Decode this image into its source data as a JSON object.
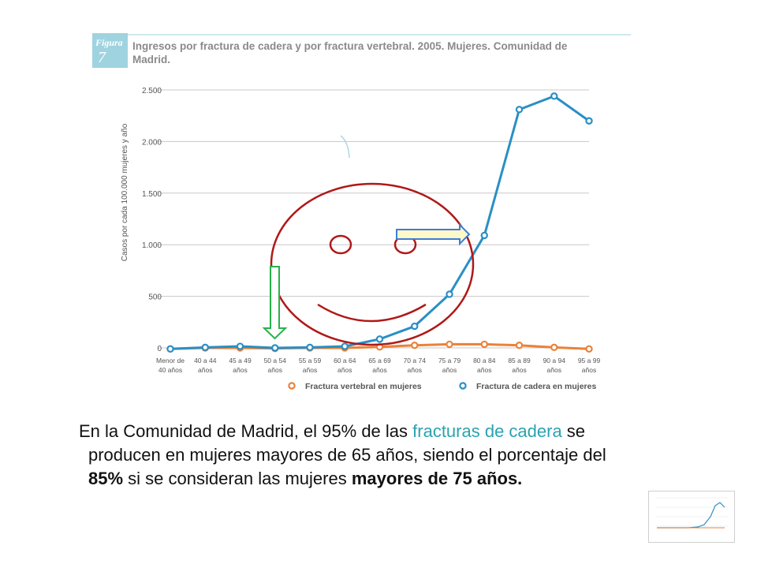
{
  "figure": {
    "badge_word": "Figura",
    "badge_number": "7",
    "title_line1": "Ingresos por fractura de cadera y por fractura vertebral. 2005. Mujeres. Comunidad de",
    "title_line2": "Madrid."
  },
  "colors": {
    "badge_bg": "#9fd3e0",
    "title": "#8a8a8a",
    "hip": "#2a8fc5",
    "vertebral": "#e9823a",
    "grid": "#c8c8c8",
    "annotation_red": "#b01818",
    "annotation_green": "#27b24a",
    "annotation_arrow_blue": "#3b7fd4",
    "annotation_arrow_fill": "#fff9c9",
    "highlight_text": "#2aa3b0"
  },
  "chart_data": {
    "type": "line",
    "ylabel": "Casos por cada 100.000 mujeres y año",
    "xlabel": "",
    "ylim": [
      0,
      2500
    ],
    "yticks": [
      0,
      500,
      1000,
      1500,
      2000,
      2500
    ],
    "ytick_labels": [
      "0",
      "500",
      "1.000",
      "1.500",
      "2.000",
      "2.500"
    ],
    "grid": true,
    "legend_position": "bottom",
    "categories": [
      [
        "Menor de",
        "40 años"
      ],
      [
        "40 a 44",
        "años"
      ],
      [
        "45 a 49",
        "años"
      ],
      [
        "50 a 54",
        "años"
      ],
      [
        "55 a 59",
        "años"
      ],
      [
        "60 a 64",
        "años"
      ],
      [
        "65 a 69",
        "años"
      ],
      [
        "70 a 74",
        "años"
      ],
      [
        "75 a 79",
        "años"
      ],
      [
        "80 a 84",
        "años"
      ],
      [
        "85 a 89",
        "años"
      ],
      [
        "90 a 94",
        "años"
      ],
      [
        "95 a 99",
        "años"
      ]
    ],
    "series": [
      {
        "name": "Fractura vertebral en mujeres",
        "values": [
          -10,
          0,
          0,
          -5,
          0,
          0,
          10,
          25,
          35,
          35,
          25,
          5,
          -10
        ]
      },
      {
        "name": "Fractura de cadera en mujeres",
        "values": [
          -10,
          5,
          15,
          0,
          5,
          15,
          85,
          210,
          520,
          1090,
          2310,
          2440,
          2200
        ]
      }
    ]
  },
  "caption": {
    "line1_a": "En la Comunidad de Madrid, el 95% de las ",
    "line1_hl": "fracturas de cadera",
    "line1_b": " se",
    "line2": "producen en mujeres mayores de 65 años, siendo el porcentaje del",
    "line3_bold1": "85%",
    "line3_mid": " si se consideran las mujeres ",
    "line3_bold2": "mayores de 75 años."
  }
}
